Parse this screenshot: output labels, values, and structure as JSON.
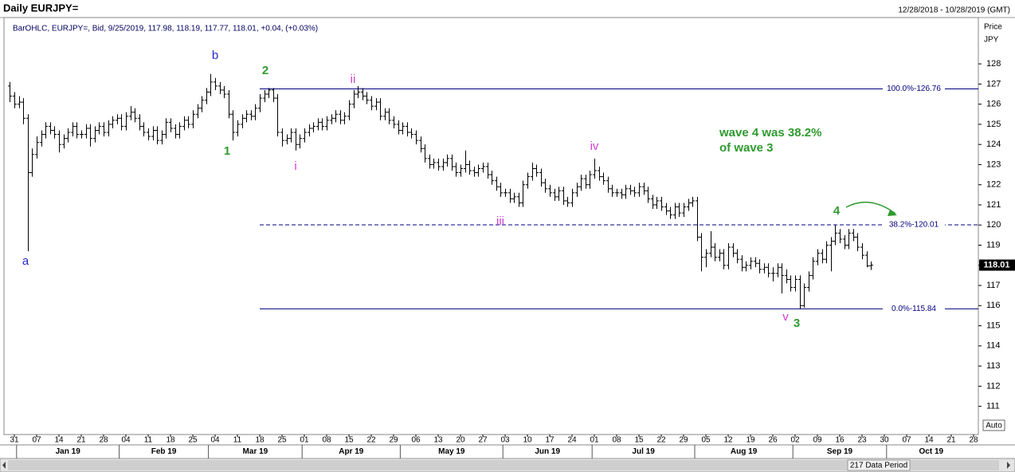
{
  "chart_data": {
    "type": "ohlc",
    "title": "Daily EURJPY=",
    "date_range": "12/28/2018 - 10/28/2019 (GMT)",
    "info": "BarOHLC, EURJPY=, Bid, 9/25/2019, 117.98, 118.19, 117.77, 118.01, +0.04, (+0.03%)",
    "y_axis_label": "Price",
    "y_axis_unit": "JPY",
    "scale_mode": "Auto",
    "data_period": "217 Data Period",
    "color": "#000000",
    "x": [
      "2018-12-28",
      "2018-12-31",
      "2019-01-01",
      "2019-01-02",
      "2019-01-03",
      "2019-01-04",
      "2019-01-07",
      "2019-01-08",
      "2019-01-09",
      "2019-01-10",
      "2019-01-11",
      "2019-01-14",
      "2019-01-15",
      "2019-01-16",
      "2019-01-17",
      "2019-01-18",
      "2019-01-21",
      "2019-01-22",
      "2019-01-23",
      "2019-01-24",
      "2019-01-25",
      "2019-01-28",
      "2019-01-29",
      "2019-01-30",
      "2019-01-31",
      "2019-02-01",
      "2019-02-04",
      "2019-02-05",
      "2019-02-06",
      "2019-02-07",
      "2019-02-08",
      "2019-02-11",
      "2019-02-12",
      "2019-02-13",
      "2019-02-14",
      "2019-02-15",
      "2019-02-18",
      "2019-02-19",
      "2019-02-20",
      "2019-02-21",
      "2019-02-22",
      "2019-02-25",
      "2019-02-26",
      "2019-02-27",
      "2019-02-28",
      "2019-03-01",
      "2019-03-04",
      "2019-03-05",
      "2019-03-06",
      "2019-03-07",
      "2019-03-08",
      "2019-03-11",
      "2019-03-12",
      "2019-03-13",
      "2019-03-14",
      "2019-03-15",
      "2019-03-18",
      "2019-03-19",
      "2019-03-20",
      "2019-03-21",
      "2019-03-22",
      "2019-03-25",
      "2019-03-26",
      "2019-03-27",
      "2019-03-28",
      "2019-03-29",
      "2019-04-01",
      "2019-04-02",
      "2019-04-03",
      "2019-04-04",
      "2019-04-05",
      "2019-04-08",
      "2019-04-09",
      "2019-04-10",
      "2019-04-11",
      "2019-04-12",
      "2019-04-15",
      "2019-04-16",
      "2019-04-17",
      "2019-04-18",
      "2019-04-19",
      "2019-04-22",
      "2019-04-23",
      "2019-04-24",
      "2019-04-25",
      "2019-04-26",
      "2019-04-29",
      "2019-04-30",
      "2019-05-01",
      "2019-05-02",
      "2019-05-03",
      "2019-05-06",
      "2019-05-07",
      "2019-05-08",
      "2019-05-09",
      "2019-05-10",
      "2019-05-13",
      "2019-05-14",
      "2019-05-15",
      "2019-05-16",
      "2019-05-17",
      "2019-05-20",
      "2019-05-21",
      "2019-05-22",
      "2019-05-23",
      "2019-05-24",
      "2019-05-27",
      "2019-05-28",
      "2019-05-29",
      "2019-05-30",
      "2019-05-31",
      "2019-06-03",
      "2019-06-04",
      "2019-06-05",
      "2019-06-06",
      "2019-06-07",
      "2019-06-10",
      "2019-06-11",
      "2019-06-12",
      "2019-06-13",
      "2019-06-14",
      "2019-06-17",
      "2019-06-18",
      "2019-06-19",
      "2019-06-20",
      "2019-06-21",
      "2019-06-24",
      "2019-06-25",
      "2019-06-26",
      "2019-06-27",
      "2019-06-28",
      "2019-07-01",
      "2019-07-02",
      "2019-07-03",
      "2019-07-04",
      "2019-07-05",
      "2019-07-08",
      "2019-07-09",
      "2019-07-10",
      "2019-07-11",
      "2019-07-12",
      "2019-07-15",
      "2019-07-16",
      "2019-07-17",
      "2019-07-18",
      "2019-07-19",
      "2019-07-22",
      "2019-07-23",
      "2019-07-24",
      "2019-07-25",
      "2019-07-26",
      "2019-07-29",
      "2019-07-30",
      "2019-07-31",
      "2019-08-01",
      "2019-08-02",
      "2019-08-05",
      "2019-08-06",
      "2019-08-07",
      "2019-08-08",
      "2019-08-09",
      "2019-08-12",
      "2019-08-13",
      "2019-08-14",
      "2019-08-15",
      "2019-08-16",
      "2019-08-19",
      "2019-08-20",
      "2019-08-21",
      "2019-08-22",
      "2019-08-23",
      "2019-08-26",
      "2019-08-27",
      "2019-08-28",
      "2019-08-29",
      "2019-08-30",
      "2019-09-02",
      "2019-09-03",
      "2019-09-04",
      "2019-09-05",
      "2019-09-06",
      "2019-09-09",
      "2019-09-10",
      "2019-09-11",
      "2019-09-12",
      "2019-09-13",
      "2019-09-16",
      "2019-09-17",
      "2019-09-18",
      "2019-09-19",
      "2019-09-20",
      "2019-09-23",
      "2019-09-24",
      "2019-09-25"
    ],
    "open": [
      126.9,
      126.4,
      126.0,
      126.1,
      125.3,
      122.6,
      123.5,
      124.1,
      124.5,
      124.9,
      124.7,
      124.5,
      124.0,
      124.3,
      124.6,
      124.9,
      124.5,
      124.5,
      124.8,
      124.3,
      124.7,
      124.9,
      124.6,
      125.0,
      125.2,
      125.3,
      124.9,
      125.4,
      125.6,
      125.3,
      124.9,
      124.6,
      124.4,
      124.7,
      124.2,
      124.5,
      125.1,
      124.8,
      124.5,
      124.9,
      125.2,
      125.0,
      125.5,
      125.8,
      126.2,
      126.6,
      127.1,
      126.9,
      126.7,
      126.5,
      125.5,
      124.6,
      125.0,
      125.3,
      125.5,
      125.4,
      125.8,
      126.3,
      126.5,
      126.7,
      126.3,
      124.6,
      124.2,
      124.3,
      124.6,
      124.0,
      124.3,
      124.6,
      124.8,
      124.9,
      125.1,
      124.9,
      125.2,
      125.3,
      125.5,
      125.2,
      125.4,
      126.0,
      126.5,
      126.6,
      126.4,
      126.2,
      125.9,
      126.1,
      125.4,
      125.6,
      125.2,
      125.0,
      124.7,
      124.9,
      124.6,
      124.5,
      124.2,
      123.8,
      123.3,
      123.0,
      123.1,
      122.9,
      123.1,
      123.3,
      122.9,
      122.6,
      122.8,
      123.0,
      122.7,
      122.6,
      122.8,
      122.9,
      122.5,
      122.2,
      121.9,
      121.6,
      121.6,
      121.3,
      121.4,
      121.1,
      122.0,
      122.4,
      122.8,
      122.6,
      122.1,
      121.8,
      121.6,
      121.4,
      121.7,
      121.2,
      121.1,
      121.6,
      121.9,
      122.3,
      122.0,
      122.5,
      122.7,
      122.4,
      122.2,
      121.8,
      121.6,
      121.6,
      121.5,
      121.8,
      121.7,
      121.6,
      121.9,
      121.7,
      121.3,
      121.0,
      121.2,
      120.9,
      120.7,
      120.5,
      120.9,
      120.6,
      120.9,
      121.1,
      121.2,
      119.4,
      118.4,
      118.6,
      118.9,
      118.4,
      118.6,
      118.0,
      118.9,
      118.6,
      118.3,
      117.9,
      118.0,
      118.2,
      118.1,
      117.8,
      117.9,
      117.6,
      117.6,
      117.9,
      117.5,
      117.3,
      116.9,
      117.3,
      116.0,
      116.9,
      117.5,
      118.2,
      118.6,
      118.3,
      119.0,
      119.2,
      119.6,
      119.3,
      119.0,
      119.6,
      119.4,
      118.9,
      118.5,
      117.98
    ],
    "high": [
      127.1,
      126.6,
      126.4,
      126.3,
      125.5,
      123.8,
      124.4,
      124.7,
      125.1,
      125.1,
      124.9,
      124.7,
      124.5,
      124.8,
      125.1,
      125.1,
      124.7,
      125.0,
      125.0,
      124.9,
      125.1,
      125.1,
      125.2,
      125.4,
      125.5,
      125.5,
      125.6,
      125.9,
      125.8,
      125.5,
      125.1,
      124.8,
      124.9,
      124.9,
      124.7,
      125.3,
      125.3,
      125.0,
      125.1,
      125.4,
      125.4,
      125.7,
      126.0,
      126.4,
      126.8,
      127.5,
      127.3,
      127.1,
      126.9,
      126.7,
      125.7,
      125.2,
      125.5,
      125.7,
      125.7,
      126.0,
      126.5,
      126.7,
      126.8,
      126.8,
      126.5,
      124.8,
      124.5,
      124.8,
      124.8,
      124.5,
      124.8,
      125.0,
      125.1,
      125.3,
      125.3,
      125.4,
      125.5,
      125.7,
      125.7,
      125.6,
      126.2,
      126.7,
      126.9,
      126.8,
      126.6,
      126.4,
      126.3,
      126.3,
      125.8,
      125.8,
      125.4,
      125.2,
      125.1,
      125.1,
      124.8,
      124.7,
      124.4,
      124.0,
      123.5,
      123.3,
      123.3,
      123.3,
      123.5,
      123.5,
      123.1,
      123.0,
      123.7,
      123.2,
      122.9,
      123.0,
      123.1,
      123.1,
      122.7,
      122.4,
      122.1,
      121.8,
      121.8,
      121.6,
      121.6,
      122.2,
      122.6,
      123.1,
      123.0,
      122.8,
      122.3,
      122.0,
      121.8,
      121.9,
      121.9,
      121.4,
      121.8,
      122.1,
      122.5,
      122.5,
      122.7,
      123.3,
      122.9,
      122.6,
      122.4,
      122.0,
      121.8,
      121.8,
      122.0,
      122.0,
      121.9,
      122.1,
      122.1,
      121.9,
      121.5,
      121.4,
      121.4,
      121.1,
      120.9,
      121.1,
      121.1,
      121.1,
      121.3,
      121.4,
      121.4,
      119.6,
      118.8,
      119.7,
      119.1,
      118.8,
      118.8,
      119.1,
      119.1,
      118.8,
      118.5,
      118.2,
      118.4,
      118.4,
      118.3,
      118.1,
      118.1,
      117.9,
      118.1,
      118.1,
      117.8,
      117.5,
      117.5,
      117.5,
      117.1,
      117.7,
      118.4,
      118.8,
      118.8,
      119.2,
      119.4,
      120.0,
      119.8,
      119.5,
      119.8,
      119.8,
      119.6,
      119.1,
      118.7,
      118.19
    ],
    "low": [
      126.1,
      125.8,
      125.8,
      125.0,
      118.7,
      122.4,
      123.3,
      123.9,
      124.3,
      124.5,
      124.3,
      123.6,
      123.8,
      124.1,
      124.4,
      124.3,
      124.3,
      124.3,
      123.9,
      124.1,
      124.5,
      124.4,
      124.4,
      124.8,
      125.0,
      124.7,
      124.7,
      125.2,
      125.1,
      124.7,
      124.4,
      124.2,
      124.2,
      124.0,
      124.0,
      124.3,
      124.6,
      124.3,
      124.3,
      124.7,
      124.8,
      124.8,
      125.3,
      125.6,
      126.0,
      126.4,
      126.7,
      126.5,
      126.3,
      125.3,
      124.2,
      124.4,
      124.8,
      125.1,
      125.2,
      125.2,
      125.6,
      126.1,
      126.3,
      126.1,
      124.4,
      123.9,
      124.0,
      124.1,
      123.7,
      123.8,
      124.1,
      124.4,
      124.6,
      124.7,
      124.7,
      124.7,
      125.0,
      125.1,
      125.0,
      125.0,
      125.2,
      125.8,
      126.3,
      126.2,
      126.0,
      125.7,
      125.7,
      125.2,
      125.2,
      125.0,
      124.8,
      124.5,
      124.5,
      124.4,
      124.3,
      124.0,
      123.6,
      123.1,
      122.8,
      122.8,
      122.7,
      122.7,
      122.9,
      122.7,
      122.4,
      122.4,
      122.6,
      122.5,
      122.4,
      122.4,
      122.6,
      122.3,
      122.0,
      121.7,
      121.4,
      121.4,
      121.1,
      121.1,
      120.9,
      120.9,
      121.8,
      122.2,
      122.4,
      121.9,
      121.6,
      121.4,
      121.2,
      121.2,
      121.0,
      120.9,
      120.9,
      121.4,
      121.7,
      121.8,
      121.8,
      122.3,
      122.2,
      122.0,
      121.6,
      121.4,
      121.4,
      121.3,
      121.3,
      121.5,
      121.4,
      121.4,
      121.5,
      121.1,
      120.8,
      120.8,
      120.7,
      120.5,
      120.3,
      120.3,
      120.4,
      120.4,
      120.7,
      120.9,
      119.2,
      117.7,
      117.9,
      118.4,
      118.2,
      118.2,
      117.8,
      117.8,
      118.4,
      118.1,
      117.7,
      117.7,
      117.8,
      117.9,
      117.6,
      117.6,
      117.4,
      117.2,
      117.4,
      116.6,
      117.1,
      116.7,
      116.7,
      115.84,
      115.9,
      116.7,
      117.3,
      118.0,
      118.1,
      118.1,
      117.7,
      119.0,
      119.1,
      118.8,
      118.8,
      119.2,
      118.7,
      118.3,
      117.9,
      117.77
    ],
    "close": [
      126.4,
      126.0,
      126.1,
      125.3,
      122.6,
      123.5,
      124.1,
      124.5,
      124.9,
      124.7,
      124.5,
      124.0,
      124.3,
      124.6,
      124.9,
      124.5,
      124.5,
      124.8,
      124.3,
      124.7,
      124.9,
      124.6,
      125.0,
      125.2,
      125.3,
      124.9,
      125.4,
      125.6,
      125.3,
      124.9,
      124.6,
      124.4,
      124.7,
      124.2,
      124.5,
      125.1,
      124.8,
      124.5,
      124.9,
      125.2,
      125.0,
      125.5,
      125.8,
      126.2,
      126.6,
      127.1,
      126.9,
      126.7,
      126.5,
      125.5,
      124.6,
      125.0,
      125.3,
      125.5,
      125.4,
      125.8,
      126.3,
      126.5,
      126.7,
      126.3,
      124.6,
      124.2,
      124.3,
      124.6,
      124.0,
      124.3,
      124.6,
      124.8,
      124.9,
      125.1,
      124.9,
      125.2,
      125.3,
      125.5,
      125.2,
      125.4,
      126.0,
      126.5,
      126.6,
      126.4,
      126.2,
      125.9,
      126.1,
      125.4,
      125.6,
      125.2,
      125.0,
      124.7,
      124.9,
      124.6,
      124.5,
      124.2,
      123.8,
      123.3,
      123.0,
      123.1,
      122.9,
      123.1,
      123.3,
      122.9,
      122.6,
      122.8,
      123.0,
      122.7,
      122.6,
      122.8,
      122.9,
      122.5,
      122.2,
      121.9,
      121.6,
      121.6,
      121.3,
      121.4,
      121.1,
      122.0,
      122.4,
      122.8,
      122.6,
      122.1,
      121.8,
      121.6,
      121.4,
      121.7,
      121.2,
      121.1,
      121.6,
      121.9,
      122.3,
      122.0,
      122.5,
      122.7,
      122.4,
      122.2,
      121.8,
      121.6,
      121.6,
      121.5,
      121.8,
      121.7,
      121.6,
      121.9,
      121.7,
      121.3,
      121.0,
      121.2,
      120.9,
      120.7,
      120.5,
      120.9,
      120.6,
      120.9,
      121.1,
      121.2,
      119.4,
      118.4,
      118.6,
      118.9,
      118.4,
      118.6,
      118.0,
      118.9,
      118.6,
      118.3,
      117.9,
      118.0,
      118.2,
      118.1,
      117.8,
      117.9,
      117.6,
      117.6,
      117.9,
      117.5,
      117.3,
      116.9,
      117.3,
      116.0,
      116.9,
      117.5,
      118.2,
      118.6,
      118.3,
      119.0,
      119.2,
      119.6,
      119.3,
      119.0,
      119.6,
      119.4,
      118.9,
      118.5,
      117.97,
      118.01
    ],
    "xlim": [
      "2018-12-28",
      "2019-10-28"
    ],
    "xticks": [
      {
        "value": "2018-12-31",
        "label": "31"
      },
      {
        "value": "2019-01-07",
        "label": "07"
      },
      {
        "value": "2019-01-14",
        "label": "14"
      },
      {
        "value": "2019-01-21",
        "label": "21"
      },
      {
        "value": "2019-01-28",
        "label": "28"
      },
      {
        "value": "2019-02-04",
        "label": "04"
      },
      {
        "value": "2019-02-11",
        "label": "11"
      },
      {
        "value": "2019-02-18",
        "label": "18"
      },
      {
        "value": "2019-02-25",
        "label": "25"
      },
      {
        "value": "2019-03-04",
        "label": "04"
      },
      {
        "value": "2019-03-11",
        "label": "11"
      },
      {
        "value": "2019-03-18",
        "label": "18"
      },
      {
        "value": "2019-03-25",
        "label": "25"
      },
      {
        "value": "2019-04-01",
        "label": "01"
      },
      {
        "value": "2019-04-08",
        "label": "08"
      },
      {
        "value": "2019-04-15",
        "label": "15"
      },
      {
        "value": "2019-04-22",
        "label": "22"
      },
      {
        "value": "2019-04-29",
        "label": "29"
      },
      {
        "value": "2019-05-06",
        "label": "06"
      },
      {
        "value": "2019-05-13",
        "label": "13"
      },
      {
        "value": "2019-05-20",
        "label": "20"
      },
      {
        "value": "2019-05-27",
        "label": "27"
      },
      {
        "value": "2019-06-03",
        "label": "03"
      },
      {
        "value": "2019-06-10",
        "label": "10"
      },
      {
        "value": "2019-06-17",
        "label": "17"
      },
      {
        "value": "2019-06-24",
        "label": "24"
      },
      {
        "value": "2019-07-01",
        "label": "01"
      },
      {
        "value": "2019-07-08",
        "label": "08"
      },
      {
        "value": "2019-07-15",
        "label": "15"
      },
      {
        "value": "2019-07-22",
        "label": "22"
      },
      {
        "value": "2019-07-29",
        "label": "29"
      },
      {
        "value": "2019-08-05",
        "label": "05"
      },
      {
        "value": "2019-08-12",
        "label": "12"
      },
      {
        "value": "2019-08-19",
        "label": "19"
      },
      {
        "value": "2019-08-26",
        "label": "26"
      },
      {
        "value": "2019-09-02",
        "label": "02"
      },
      {
        "value": "2019-09-09",
        "label": "09"
      },
      {
        "value": "2019-09-16",
        "label": "16"
      },
      {
        "value": "2019-09-23",
        "label": "23"
      },
      {
        "value": "2019-09-30",
        "label": "30"
      },
      {
        "value": "2019-10-07",
        "label": "07"
      },
      {
        "value": "2019-10-14",
        "label": "14"
      },
      {
        "value": "2019-10-21",
        "label": "21"
      },
      {
        "value": "2019-10-28",
        "label": "28"
      }
    ],
    "month_labels": [
      "Jan 19",
      "Feb 19",
      "Mar 19",
      "Apr 19",
      "May 19",
      "Jun 19",
      "Jul 19",
      "Aug 19",
      "Sep 19",
      "Oct 19"
    ],
    "ylim": [
      109.6,
      130.3
    ],
    "yticks": [
      111,
      112,
      113,
      114,
      115,
      116,
      117,
      118,
      119,
      120,
      121,
      122,
      123,
      124,
      125,
      126,
      127,
      128
    ],
    "levels": [
      {
        "label": "100.0%-126.76",
        "value": 126.76,
        "dashed": false
      },
      {
        "label": "38.2%-120.01",
        "value": 120.01,
        "dashed": true
      },
      {
        "label": "0.0%-115.84",
        "value": 115.84,
        "dashed": false
      }
    ],
    "level_color": "#000080",
    "wave_labels": [
      {
        "text": "a",
        "color": "#2a2ad0"
      },
      {
        "text": "b",
        "color": "#2a2ad0"
      },
      {
        "text": "1",
        "color": "#2f9a2f"
      },
      {
        "text": "2",
        "color": "#2f9a2f"
      },
      {
        "text": "i",
        "color": "#d23cd2"
      },
      {
        "text": "ii",
        "color": "#d23cd2"
      },
      {
        "text": "iii",
        "color": "#d23cd2"
      },
      {
        "text": "iv",
        "color": "#d23cd2"
      },
      {
        "text": "v",
        "color": "#d23cd2"
      },
      {
        "text": "3",
        "color": "#2f9a2f"
      },
      {
        "text": "4",
        "color": "#2f9a2f"
      }
    ],
    "annotation": [
      "wave 4 was 38.2%",
      "of wave 3"
    ],
    "annotation_color": "#2f9a2f"
  }
}
